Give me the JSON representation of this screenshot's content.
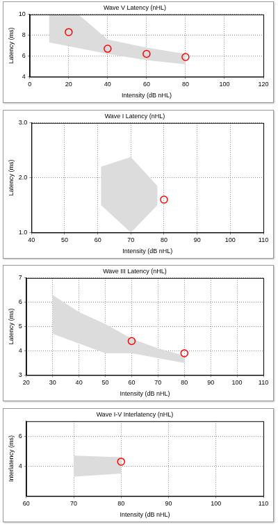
{
  "chart_data": [
    {
      "type": "scatter",
      "title": "Wave V Latency (nHL)",
      "x_label": "Intensity (dB nHL)",
      "y_label": "Latency (ms)",
      "xlim": [
        0,
        120
      ],
      "xticks": [
        0,
        20,
        40,
        60,
        80,
        100,
        120
      ],
      "ylim": [
        4,
        10
      ],
      "yticks": [
        4,
        6,
        8,
        10
      ],
      "grid": true,
      "series": [
        {
          "x": [
            20,
            40,
            60,
            80
          ],
          "values": [
            8.3,
            6.7,
            6.2,
            5.9
          ],
          "color": "#ff0000",
          "marker": "circle"
        }
      ],
      "normal_range": {
        "x": [
          10,
          25,
          40,
          60,
          80,
          80,
          60,
          40,
          10
        ],
        "y": [
          10,
          10,
          7.6,
          6.8,
          6.2,
          5.2,
          5.6,
          6.2,
          7.3
        ],
        "color": "#dcdcdc"
      }
    },
    {
      "type": "scatter",
      "title": "Wave I Latency (nHL)",
      "x_label": "Intensity (dB nHL)",
      "y_label": "Latency (ms)",
      "xlim": [
        40,
        110
      ],
      "xticks": [
        40,
        50,
        60,
        70,
        80,
        90,
        100,
        110
      ],
      "ylim": [
        1,
        3
      ],
      "yticks": [
        {
          "value": 1,
          "label": "1.0"
        },
        {
          "value": 2,
          "label": "2.0"
        },
        {
          "value": 3,
          "label": "3.0"
        }
      ],
      "grid": true,
      "series": [
        {
          "x": [
            80
          ],
          "values": [
            1.6
          ],
          "color": "#ff0000",
          "marker": "circle"
        }
      ],
      "normal_range": {
        "x": [
          61,
          70,
          78,
          78,
          70,
          61
        ],
        "y": [
          2.2,
          2.38,
          1.85,
          1.5,
          1.0,
          1.5
        ],
        "color": "#dcdcdc"
      }
    },
    {
      "type": "scatter",
      "title": "Wave III Latency (nHL)",
      "x_label": "Intensity (dB nHL)",
      "y_label": "Latency (ms)",
      "xlim": [
        20,
        110
      ],
      "xticks": [
        20,
        30,
        40,
        50,
        60,
        70,
        80,
        90,
        100,
        110
      ],
      "ylim": [
        3,
        7
      ],
      "yticks": [
        3,
        4,
        5,
        6,
        7
      ],
      "grid": true,
      "series": [
        {
          "x": [
            60,
            80
          ],
          "values": [
            4.4,
            3.9
          ],
          "color": "#ff0000",
          "marker": "circle"
        }
      ],
      "normal_range": {
        "x": [
          30,
          40,
          50,
          60,
          70,
          80,
          80,
          70,
          60,
          50,
          40,
          30
        ],
        "y": [
          6.3,
          5.6,
          5.1,
          4.5,
          4.1,
          3.8,
          3.5,
          3.7,
          3.9,
          3.9,
          4.3,
          4.7
        ],
        "color": "#dcdcdc"
      }
    },
    {
      "type": "scatter",
      "title": "Wave I-V Interlatency (nHL)",
      "x_label": "Intensity (dB nHL)",
      "y_label": "Interlatency (ms)",
      "xlim": [
        60,
        110
      ],
      "xticks": [
        60,
        70,
        80,
        90,
        100,
        110
      ],
      "ylim": [
        2,
        7
      ],
      "yticks": [
        4,
        6
      ],
      "grid": true,
      "series": [
        {
          "x": [
            80
          ],
          "values": [
            4.3
          ],
          "color": "#ff0000",
          "marker": "circle"
        }
      ],
      "normal_range": {
        "x": [
          70,
          80,
          80,
          70
        ],
        "y": [
          4.7,
          4.6,
          3.5,
          3.3
        ],
        "color": "#dcdcdc"
      }
    }
  ]
}
